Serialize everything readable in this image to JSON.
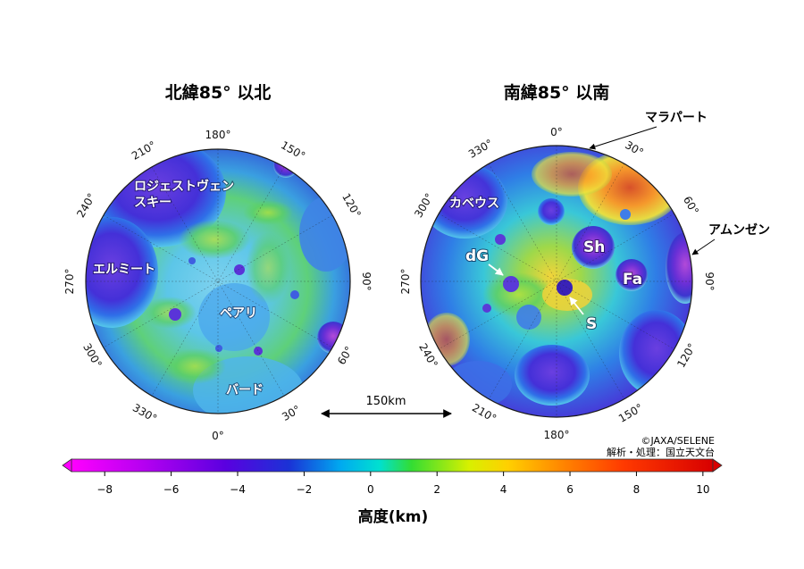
{
  "titles": {
    "north": "北緯85°  以北",
    "south": "南緯85°  以南"
  },
  "north_degrees": {
    "d180": "180°",
    "d210": "210°",
    "d150": "150°",
    "d240": "240°",
    "d120": "120°",
    "d270": "270°",
    "d90": "90°",
    "d300": "300°",
    "d60": "60°",
    "d330": "330°",
    "d30": "30°",
    "d0": "0°"
  },
  "south_degrees": {
    "d0": "0°",
    "d330": "330°",
    "d30": "30°",
    "d300": "300°",
    "d60": "60°",
    "d270": "270°",
    "d90": "90°",
    "d240": "240°",
    "d120": "120°",
    "d210": "210°",
    "d150": "150°",
    "d180": "180°"
  },
  "north_labels": {
    "rozhestvensky_1": "ロジェストヴェン",
    "rozhestvensky_2": "スキー",
    "hermite": "エルミート",
    "peary": "ペアリ",
    "byrd": "バード"
  },
  "south_labels": {
    "malapert": "マラパート",
    "amundsen": "アムンゼン",
    "cabeus": "カベウス",
    "dg": "dG",
    "sh": "Sh",
    "fa": "Fa",
    "s": "S"
  },
  "scale_bar": {
    "label": "150km"
  },
  "credits": {
    "line1": "©JAXA/SELENE",
    "line2": "解析・処理：国立天文台"
  },
  "colorbar": {
    "title": "高度(km)",
    "min": -9,
    "max": 10.3,
    "ticks": [
      "−8",
      "−6",
      "−4",
      "−2",
      "0",
      "2",
      "4",
      "6",
      "8",
      "10"
    ],
    "colors": [
      "#ff00ff",
      "#7700ee",
      "#2222cc",
      "#00ccee",
      "#33dd33",
      "#ffff00",
      "#ff8800",
      "#ff2200",
      "#dd0000"
    ]
  }
}
